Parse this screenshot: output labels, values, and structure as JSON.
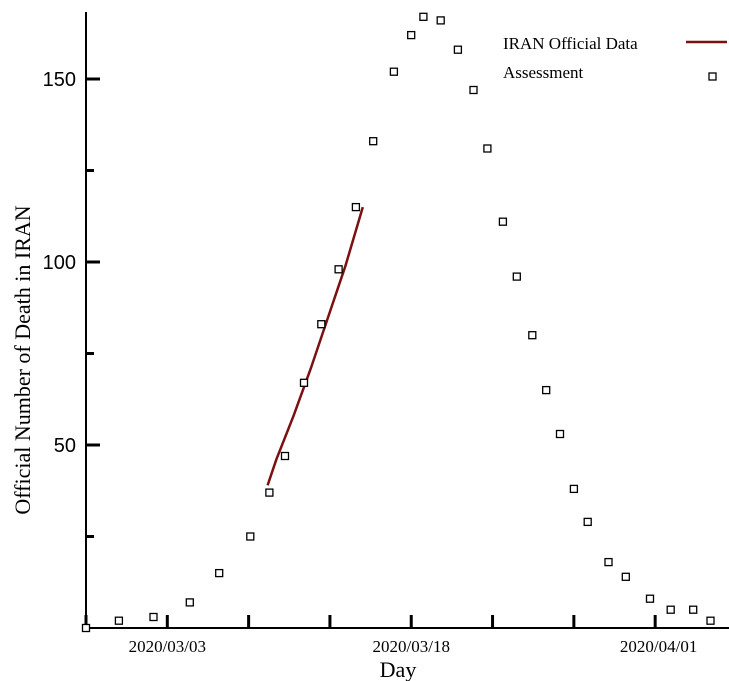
{
  "chart_data": {
    "type": "scatter",
    "xlabel": "Day",
    "ylabel": "Official Number of Death in IRAN",
    "x_tick_labels": [
      "2020/03/03",
      "2020/03/18",
      "2020/04/01"
    ],
    "y_tick_labels": [
      "50",
      "100",
      "150"
    ],
    "ylim": [
      0,
      167
    ],
    "xlim": [
      0,
      38
    ],
    "legend": {
      "position": "top-right",
      "entries": [
        "IRAN Official Data",
        "Assessment"
      ]
    },
    "series": [
      {
        "name": "IRAN Official Data",
        "kind": "line",
        "color": "#7a1012",
        "x": [
          10.5,
          11,
          12,
          13,
          14,
          15,
          16
        ],
        "y": [
          39,
          46,
          58,
          71,
          85,
          99,
          115
        ]
      },
      {
        "name": "Assessment",
        "kind": "markers",
        "x": [
          0,
          1.9,
          3.9,
          6,
          7.7,
          9.5,
          10.6,
          11.5,
          12.6,
          13.6,
          14.6,
          15.6,
          16.6,
          17.8,
          18.8,
          19.5,
          20.5,
          21.5,
          22.4,
          23.2,
          24.1,
          24.9,
          25.8,
          26.6,
          27.4,
          28.2,
          29,
          30.2,
          31.2,
          32.6,
          33.8,
          35.1,
          36.1
        ],
        "y": [
          0,
          2,
          3,
          7,
          15,
          25,
          37,
          47,
          67,
          83,
          98,
          115,
          133,
          152,
          162,
          167,
          166,
          158,
          147,
          131,
          111,
          96,
          80,
          65,
          53,
          38,
          29,
          18,
          14,
          8,
          5,
          5,
          2
        ]
      }
    ]
  }
}
